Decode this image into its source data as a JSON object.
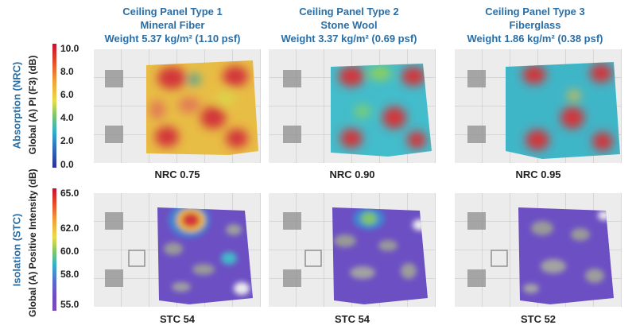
{
  "columns": [
    {
      "title": "Ceiling Panel Type 1",
      "material": "Mineral Fiber",
      "weight": "Weight 5.37 kg/m² (1.10 psf)",
      "nrc": "NRC 0.75",
      "stc": "STC 54"
    },
    {
      "title": "Ceiling Panel Type 2",
      "material": "Stone Wool",
      "weight": "Weight 3.37 kg/m² (0.69 psf)",
      "nrc": "NRC 0.90",
      "stc": "STC 54"
    },
    {
      "title": "Ceiling Panel Type 3",
      "material": "Fiberglass",
      "weight": "Weight 1.86 kg/m² (0.38 psf)",
      "nrc": "NRC 0.95",
      "stc": "STC 52"
    }
  ],
  "rows": {
    "absorption_label": "Absorption (NRC)",
    "isolation_label": "Isolation (STC)"
  },
  "scales": {
    "absorption": {
      "title": "Global (A) PI (F3) (dB)",
      "ticks": [
        "10.0",
        "8.0",
        "6.0",
        "4.0",
        "2.0",
        "0.0"
      ]
    },
    "isolation": {
      "title": "Global (A) Positive Intensity (dB)",
      "ticks": [
        "65.0",
        "62.0",
        "60.0",
        "58.0",
        "55.0"
      ]
    }
  },
  "colors": {
    "heading": "#2a6ea6",
    "hot": "#d2343a",
    "warm": "#e9b93a",
    "mid": "#3fb6c8",
    "cool": "#6a4fc2"
  }
}
